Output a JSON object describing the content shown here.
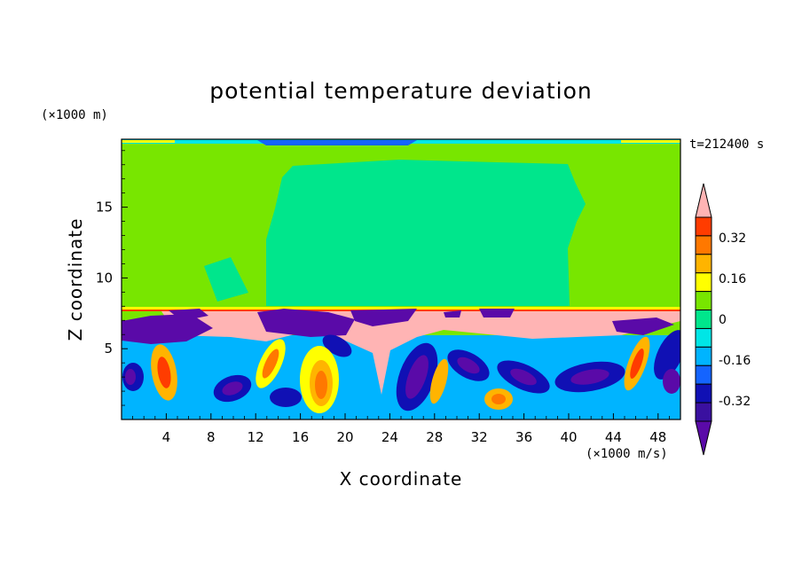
{
  "chart_data": {
    "type": "heatmap",
    "title": "potential temperature deviation",
    "xlabel": "X coordinate",
    "ylabel": "Z coordinate",
    "x_unit": "(×1000 m/s)",
    "y_unit": "(×1000 m)",
    "time_label": "t=212400 s",
    "xlim": [
      0,
      50
    ],
    "ylim": [
      0,
      19.8
    ],
    "x_ticks": [
      4,
      8,
      12,
      16,
      20,
      24,
      28,
      32,
      36,
      40,
      44,
      48
    ],
    "y_ticks": [
      5,
      10,
      15
    ],
    "colorbar": {
      "tick_labels": [
        "0.32",
        "0.16",
        "0",
        "-0.16",
        "-0.32"
      ],
      "tick_values": [
        0.32,
        0.16,
        0,
        -0.16,
        -0.32
      ],
      "levels": [
        -0.48,
        -0.4,
        -0.32,
        -0.24,
        -0.16,
        -0.08,
        0,
        0.08,
        0.16,
        0.24,
        0.32,
        0.4,
        0.48
      ],
      "colors": [
        "#5a0aa8",
        "#3a10a0",
        "#1010b4",
        "#1464ff",
        "#00b4ff",
        "#00e6e6",
        "#00e68c",
        "#78e600",
        "#ffff00",
        "#ffb400",
        "#ff7800",
        "#ff3c00",
        "#ffb4b4"
      ]
    }
  }
}
